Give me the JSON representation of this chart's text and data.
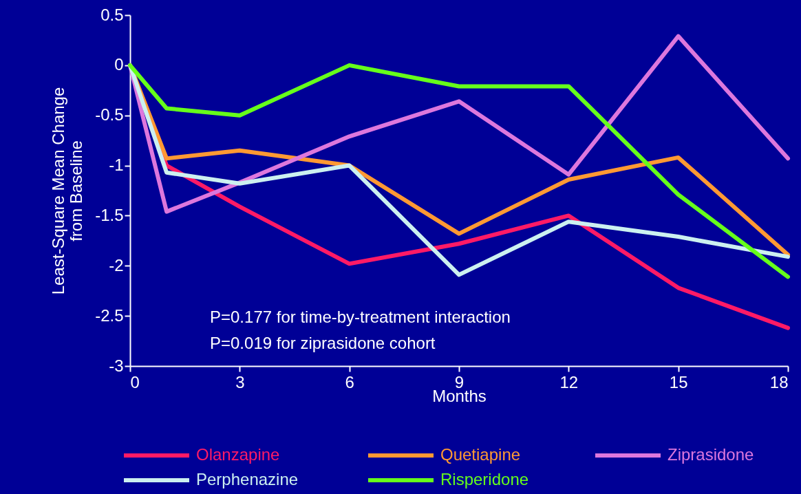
{
  "chart_data": {
    "type": "line",
    "xlabel": "Months",
    "ylabel": "Least-Square Mean Change\nfrom Baseline",
    "x": [
      0,
      1,
      3,
      6,
      9,
      12,
      15,
      18
    ],
    "series": [
      {
        "name": "Olanzapine",
        "color": "#ff1a66",
        "values": [
          0,
          -1.0,
          -1.41,
          -1.98,
          -1.78,
          -1.5,
          -2.22,
          -2.62
        ]
      },
      {
        "name": "Quetiapine",
        "color": "#ff9933",
        "values": [
          0,
          -0.93,
          -0.85,
          -1.0,
          -1.68,
          -1.14,
          -0.92,
          -1.89
        ]
      },
      {
        "name": "Ziprasidone",
        "color": "#dd77dd",
        "values": [
          0,
          -1.46,
          -1.17,
          -0.71,
          -0.36,
          -1.09,
          0.29,
          -0.93
        ]
      },
      {
        "name": "Perphenazine",
        "color": "#ccf0f0",
        "values": [
          0,
          -1.07,
          -1.18,
          -1.0,
          -2.09,
          -1.56,
          -1.71,
          -1.91
        ]
      },
      {
        "name": "Risperidone",
        "color": "#66ff1a",
        "values": [
          0,
          -0.43,
          -0.5,
          0,
          -0.21,
          -0.21,
          -1.29,
          -2.11
        ]
      }
    ],
    "xlim": [
      0,
      18
    ],
    "xticks": [
      0,
      3,
      6,
      9,
      12,
      15,
      18
    ],
    "ylim": [
      -3,
      0.5
    ],
    "yticks": [
      {
        "value": -3,
        "label": "-3"
      },
      -2.5,
      {
        "value": -2,
        "label": "-2"
      },
      -1.5,
      {
        "value": -1,
        "label": "-1"
      },
      -0.5,
      {
        "value": 0,
        "label": "0"
      },
      0.5
    ],
    "annotations": [
      "P=0.177 for time-by-treatment interaction",
      "P=0.019 for ziprasidone cohort"
    ],
    "grid": false,
    "legend": "bottom",
    "marker": "none",
    "line_style": "solid"
  }
}
